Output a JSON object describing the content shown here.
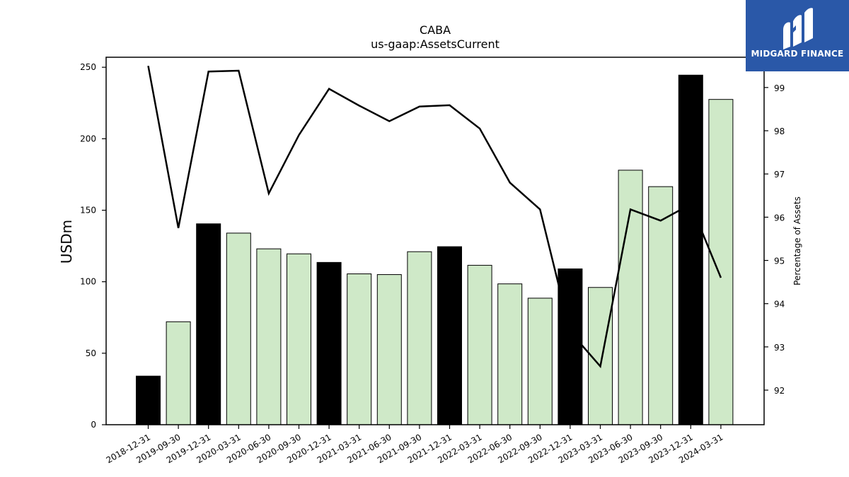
{
  "brand": {
    "name": "MIDGARD FINANCE",
    "accent": "#2a58a8"
  },
  "chart_data": {
    "type": "bar",
    "title": "CABA",
    "subtitle": "us-gaap:AssetsCurrent",
    "ylabel": "USDm",
    "y2label": "Percentage of Assets",
    "ylim": [
      0,
      257
    ],
    "y2lim": [
      91.2,
      99.7
    ],
    "yticks": [
      0,
      50,
      100,
      150,
      200,
      250
    ],
    "y2ticks": [
      92,
      93,
      94,
      95,
      96,
      97,
      98,
      99
    ],
    "categories": [
      "2018-12-31",
      "2019-09-30",
      "2019-12-31",
      "2020-03-31",
      "2020-06-30",
      "2020-09-30",
      "2020-12-31",
      "2021-03-31",
      "2021-06-30",
      "2021-09-30",
      "2021-12-31",
      "2022-03-31",
      "2022-06-30",
      "2022-09-30",
      "2022-12-31",
      "2023-03-31",
      "2023-06-30",
      "2023-09-30",
      "2023-12-31",
      "2024-03-31"
    ],
    "series": [
      {
        "type": "bar",
        "axis": "left",
        "values": [
          34,
          72,
          140.5,
          134,
          123,
          119.5,
          113.5,
          105.5,
          105,
          121,
          124.5,
          111.5,
          98.5,
          88.5,
          109,
          96,
          178,
          166.5,
          244.5,
          227.5
        ],
        "colors": [
          "#000000",
          "#cfe9c8",
          "#000000",
          "#cfe9c8",
          "#cfe9c8",
          "#cfe9c8",
          "#000000",
          "#cfe9c8",
          "#cfe9c8",
          "#cfe9c8",
          "#000000",
          "#cfe9c8",
          "#cfe9c8",
          "#cfe9c8",
          "#000000",
          "#cfe9c8",
          "#cfe9c8",
          "#cfe9c8",
          "#000000",
          "#cfe9c8"
        ]
      },
      {
        "type": "line",
        "axis": "right",
        "color": "#000000",
        "values": [
          99.5,
          95.75,
          99.37,
          99.39,
          96.55,
          97.9,
          98.97,
          98.58,
          98.22,
          98.56,
          98.59,
          98.05,
          96.8,
          96.18,
          93.35,
          92.55,
          96.18,
          95.92,
          96.3,
          94.6
        ]
      }
    ],
    "grid": false,
    "legend": "none"
  }
}
